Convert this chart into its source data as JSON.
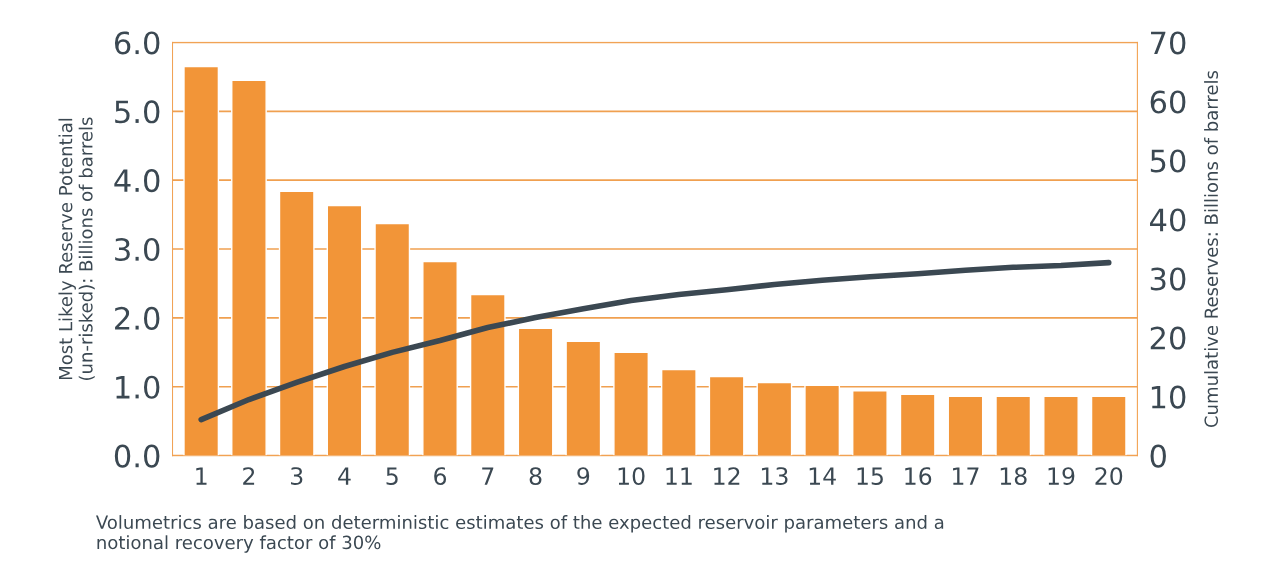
{
  "chart_data": {
    "type": "bar",
    "categories": [
      "1",
      "2",
      "3",
      "4",
      "5",
      "6",
      "7",
      "8",
      "9",
      "10",
      "11",
      "12",
      "13",
      "14",
      "15",
      "16",
      "17",
      "18",
      "19",
      "20"
    ],
    "ylabel": "Most Likely Reserve Potential\n(un-risked): Billions of barrels",
    "y2label": "Cumulative Reserves: Billions of barrels",
    "series": [
      {
        "color": "#f29538",
        "values": [
          5.65,
          5.45,
          3.84,
          3.63,
          3.37,
          2.82,
          2.34,
          1.85,
          1.66,
          1.5,
          1.25,
          1.15,
          1.06,
          1.02,
          0.94,
          0.89,
          0.86,
          0.86,
          0.86,
          0.86
        ]
      },
      {
        "type": "line",
        "axis": "y2",
        "color": "#3b4852",
        "values": [
          6.1,
          9.5,
          12.4,
          15.1,
          17.5,
          19.5,
          21.7,
          23.4,
          24.9,
          26.3,
          27.3,
          28.1,
          29.0,
          29.7,
          30.3,
          30.8,
          31.4,
          31.9,
          32.2,
          32.7
        ]
      }
    ],
    "ylim": [
      0,
      6
    ],
    "yticks": [
      {
        "value": 0,
        "label": "0.0"
      },
      {
        "value": 1,
        "label": "1.0"
      },
      {
        "value": 2,
        "label": "2.0"
      },
      {
        "value": 3,
        "label": "3.0"
      },
      {
        "value": 4,
        "label": "4.0"
      },
      {
        "value": 5,
        "label": "5.0"
      },
      {
        "value": 6,
        "label": "6.0"
      }
    ],
    "y2lim": [
      0,
      70
    ],
    "y2ticks": [
      0,
      10,
      20,
      30,
      40,
      50,
      60,
      70
    ],
    "grid": "y",
    "annotations": [
      "Volumetrics are based on deterministic estimates of the expected reservoir parameters and a\nnotional recovery factor of 30%"
    ]
  }
}
